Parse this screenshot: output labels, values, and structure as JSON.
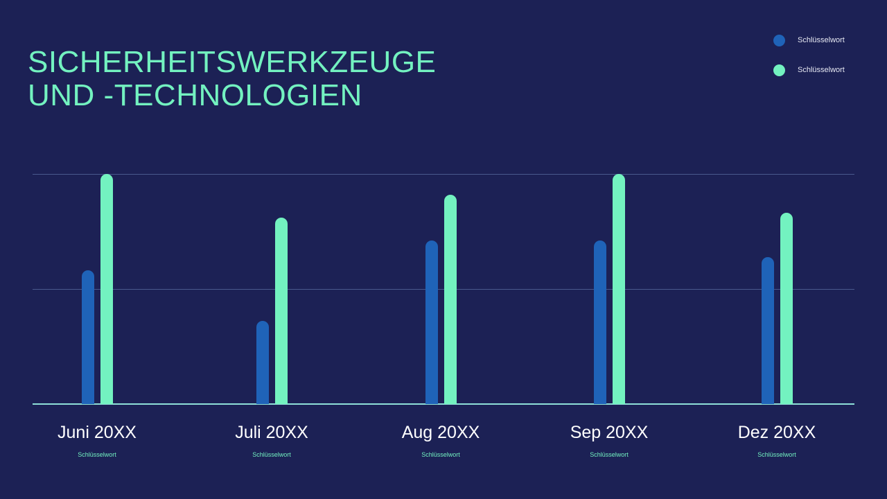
{
  "title_line1": "SICHERHEITSWERKZEUGE",
  "title_line2": "UND -TECHNOLOGIEN",
  "legend": [
    {
      "label": "Schlüsselwort",
      "color": "#1f63b8"
    },
    {
      "label": "Schlüsselwort",
      "color": "#73f2c0"
    }
  ],
  "categories": [
    {
      "label": "Juni 20XX",
      "sub": "Schlüsselwort"
    },
    {
      "label": "Juli 20XX",
      "sub": "Schlüsselwort"
    },
    {
      "label": "Aug 20XX",
      "sub": "Schlüsselwort"
    },
    {
      "label": "Sep 20XX",
      "sub": "Schlüsselwort"
    },
    {
      "label": "Dez 20XX",
      "sub": "Schlüsselwort"
    }
  ],
  "colors": {
    "background": "#1c2155",
    "accent": "#73f2c0",
    "series1": "#1f63b8",
    "series2": "#73f2c0",
    "grid": "#4a5a8e"
  },
  "chart_data": {
    "type": "bar",
    "title": "SICHERHEITSWERKZEUGE UND -TECHNOLOGIEN",
    "categories": [
      "Juni 20XX",
      "Juli 20XX",
      "Aug 20XX",
      "Sep 20XX",
      "Dez 20XX"
    ],
    "category_sublabels": [
      "Schlüsselwort",
      "Schlüsselwort",
      "Schlüsselwort",
      "Schlüsselwort",
      "Schlüsselwort"
    ],
    "series": [
      {
        "name": "Schlüsselwort",
        "color": "#1f63b8",
        "values": [
          58,
          36,
          71,
          71,
          64
        ]
      },
      {
        "name": "Schlüsselwort",
        "color": "#73f2c0",
        "values": [
          100,
          81,
          91,
          100,
          83
        ]
      }
    ],
    "xlabel": "",
    "ylabel": "",
    "ylim": [
      0,
      100
    ],
    "grid": true,
    "gridlines": [
      50,
      100
    ],
    "axis_ticks_shown": false,
    "legend_position": "top-right"
  }
}
